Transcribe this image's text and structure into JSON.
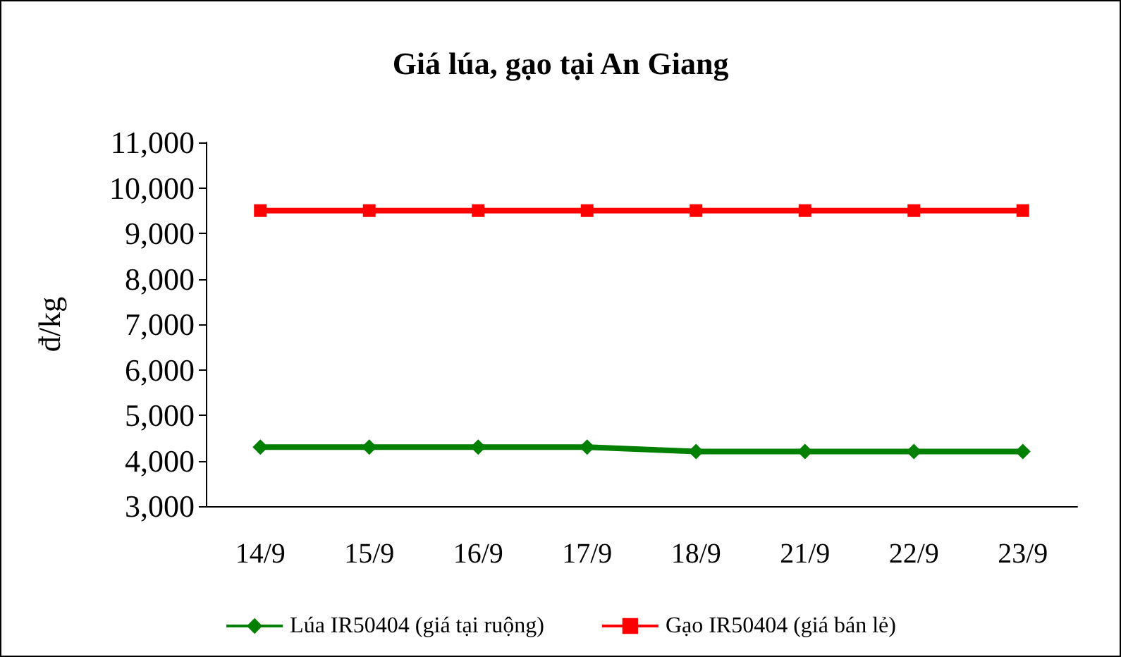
{
  "chart_data": {
    "type": "line",
    "title": "Giá lúa, gạo tại An Giang",
    "ylabel": "đ/kg",
    "categories": [
      "14/9",
      "15/9",
      "16/9",
      "17/9",
      "18/9",
      "21/9",
      "22/9",
      "23/9"
    ],
    "series": [
      {
        "name": "Lúa IR50404 (giá tại ruộng)",
        "color": "#008000",
        "marker": "diamond",
        "values": [
          4300,
          4300,
          4300,
          4300,
          4200,
          4200,
          4200,
          4200
        ]
      },
      {
        "name": "Gạo IR50404 (giá bán lẻ)",
        "color": "#ff0000",
        "marker": "square",
        "values": [
          9500,
          9500,
          9500,
          9500,
          9500,
          9500,
          9500,
          9500
        ]
      }
    ],
    "ylim": [
      3000,
      11000
    ],
    "yticks": [
      {
        "value": 3000,
        "label": "3,000"
      },
      {
        "value": 4000,
        "label": "4,000"
      },
      {
        "value": 5000,
        "label": "5,000"
      },
      {
        "value": 6000,
        "label": "6,000"
      },
      {
        "value": 7000,
        "label": "7,000"
      },
      {
        "value": 8000,
        "label": "8,000"
      },
      {
        "value": 9000,
        "label": "9,000"
      },
      {
        "value": 10000,
        "label": "10,000"
      },
      {
        "value": 11000,
        "label": "11,000"
      }
    ],
    "grid": false,
    "legend": "bottom"
  }
}
